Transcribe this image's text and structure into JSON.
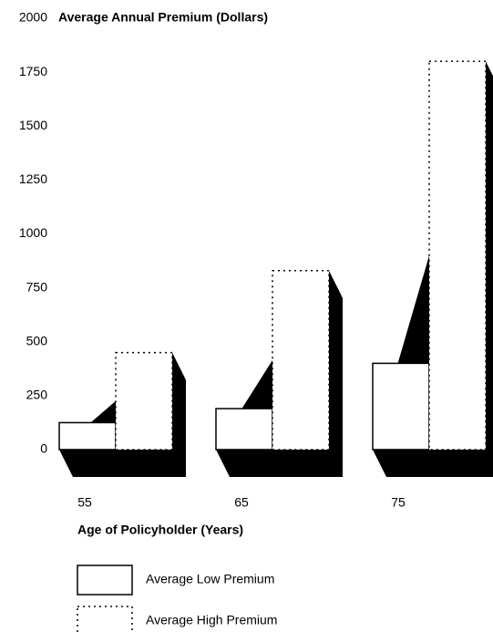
{
  "chart_data": {
    "type": "bar",
    "title": "Average Annual Premium (Dollars)",
    "xlabel": "Age of Policyholder (Years)",
    "categories": [
      "55",
      "65",
      "75"
    ],
    "series": [
      {
        "name": "Average Low Premium",
        "color": "#ffffff",
        "values": [
          125,
          190,
          400
        ]
      },
      {
        "name": "Average High Premium",
        "color": "#ffffff",
        "values": [
          450,
          830,
          1800
        ]
      }
    ],
    "ylim": [
      0,
      2000
    ],
    "yticks": [
      0,
      250,
      500,
      750,
      1000,
      1250,
      1500,
      1750,
      2000
    ],
    "grid": false,
    "legend": "bottom"
  }
}
